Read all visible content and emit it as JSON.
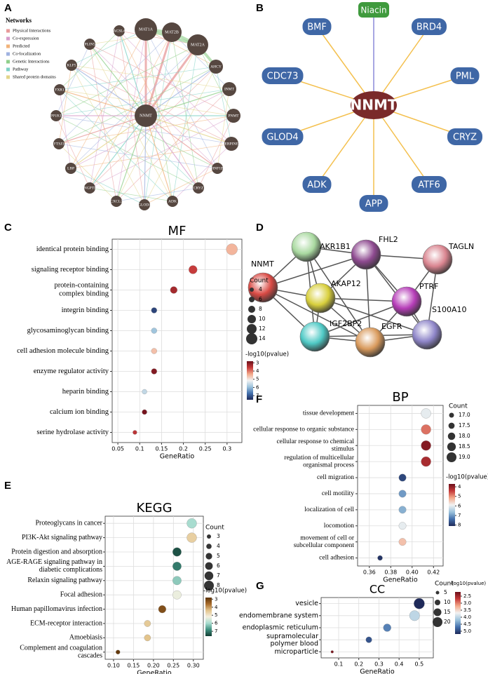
{
  "panel_labels": [
    "A",
    "B",
    "C",
    "D",
    "E",
    "F",
    "G"
  ],
  "network_a": {
    "legend_title": "Networks",
    "legend": [
      {
        "label": "Physical Interactions",
        "color": "#e89a9a"
      },
      {
        "label": "Co-expression",
        "color": "#d79ccb"
      },
      {
        "label": "Predicted",
        "color": "#f1b27a"
      },
      {
        "label": "Co-localization",
        "color": "#9fb2e0"
      },
      {
        "label": "Genetic Interactions",
        "color": "#8fcf8a"
      },
      {
        "label": "Pathway",
        "color": "#7fd2c6"
      },
      {
        "label": "Shared protein domains",
        "color": "#e3d58a"
      }
    ],
    "center": "NNMT",
    "nodes": [
      "MAT1A",
      "MAT2B",
      "MAT2A",
      "AHCY",
      "INMT",
      "PNMT",
      "SERPINE1",
      "HNF1B",
      "CRYZ",
      "ADK",
      "GLOD4",
      "CXCL2",
      "ANGPTL4",
      "LBP",
      "FTSJ3",
      "PPP1R3B",
      "FXR1",
      "KLF5",
      "PLIN5",
      "ACSL4"
    ],
    "node_color": "#564740"
  },
  "network_b": {
    "center": "NNMT",
    "center_color": "#7a2a2a",
    "drug": "Niacin",
    "drug_color": "#3f9a3d",
    "nodes": [
      "BMF",
      "BRD4",
      "CDC73",
      "PML",
      "GLOD4",
      "CRYZ",
      "ADK",
      "ATF6",
      "APP"
    ],
    "node_color": "#3f67a6",
    "edge_color": "#f4c04e",
    "drug_edge_color": "#8c8ad8"
  },
  "network_d": {
    "nodes": [
      {
        "label": "AKR1B1",
        "color": "#a9d9a0"
      },
      {
        "label": "FHL2",
        "color": "#8e4a90"
      },
      {
        "label": "TAGLN",
        "color": "#d9848f"
      },
      {
        "label": "NNMT",
        "color": "#d94a44"
      },
      {
        "label": "AKAP12",
        "color": "#d8cf3c"
      },
      {
        "label": "PTRF",
        "color": "#b63db8"
      },
      {
        "label": "S100A10",
        "color": "#8f86c9"
      },
      {
        "label": "IGF2BP2",
        "color": "#4ec9c5"
      },
      {
        "label": "EGFR",
        "color": "#d99a5c"
      }
    ],
    "edge_color": "#555555"
  },
  "chart_data": [
    {
      "type": "dotplot",
      "title": "MF",
      "xlabel": "GeneRatio",
      "categories": [
        "identical protein binding",
        "signaling receptor binding",
        "protein-containing\ncomplex binding",
        "integrin binding",
        "glycosaminoglycan binding",
        "cell adhesion molecule binding",
        "enzyme regulator activity",
        "heparin binding",
        "calcium ion binding",
        "serine hydrolase activity"
      ],
      "gene_ratio": [
        0.311,
        0.222,
        0.178,
        0.133,
        0.133,
        0.133,
        0.133,
        0.111,
        0.111,
        0.089
      ],
      "count": [
        14,
        10,
        8,
        6,
        6,
        6,
        6,
        5,
        5,
        4
      ],
      "neglog10p": [
        4.5,
        3.6,
        3.3,
        7.2,
        5.9,
        4.6,
        3.0,
        5.6,
        2.9,
        3.5
      ],
      "xlim": [
        0.037,
        0.334
      ],
      "xticks": [
        0.05,
        0.1,
        0.15,
        0.2,
        0.25,
        0.3
      ],
      "grid": true,
      "size_legend_title": "Count",
      "size_legend": [
        4,
        6,
        8,
        10,
        12,
        14
      ],
      "color_legend_title": "-log10(pvalue)",
      "clim": [
        2.8,
        7.5
      ],
      "cticks": [
        3,
        4,
        5,
        6,
        7
      ],
      "colormap": [
        "#6b0f1a",
        "#c53a3a",
        "#f3a98a",
        "#f2f2f2",
        "#9cc3dc",
        "#4470ad",
        "#1f2a5a"
      ]
    },
    {
      "type": "dotplot",
      "title": "KEGG",
      "xlabel": "GeneRatio",
      "categories": [
        "Proteoglycans in cancer",
        "PI3K-Akt signaling pathway",
        "Protein digestion and absorption",
        "AGE-RAGE signaling pathway in\ndiabetic complications",
        "Relaxin signaling pathway",
        "Focal adhesion",
        "Human papillomavirus infection",
        "ECM-receptor interaction",
        "Amoebiasis",
        "Complement and coagulation\ncascades"
      ],
      "gene_ratio": [
        0.296,
        0.296,
        0.259,
        0.259,
        0.259,
        0.259,
        0.222,
        0.185,
        0.185,
        0.111
      ],
      "count": [
        8,
        8,
        7,
        7,
        7,
        7,
        6,
        5,
        5,
        3
      ],
      "neglog10p": [
        6.0,
        4.6,
        7.4,
        7.0,
        6.2,
        5.3,
        3.2,
        4.5,
        4.4,
        2.9
      ],
      "xlim": [
        0.079,
        0.325
      ],
      "xticks": [
        {
          "value": 0.1,
          "label": "0.10"
        },
        0.15,
        {
          "value": 0.2,
          "label": "0.20"
        },
        0.25,
        {
          "value": 0.3,
          "label": "0.30"
        }
      ],
      "grid": true,
      "size_legend_title": "Count",
      "size_legend": [
        3,
        4,
        5,
        6,
        7,
        8
      ],
      "color_legend_title": "-log10(pvalue)",
      "clim": [
        2.8,
        7.6
      ],
      "cticks": [
        3,
        4,
        5,
        6,
        7
      ],
      "colormap": [
        "#5a3208",
        "#a86b2b",
        "#e3c48c",
        "#f5f0e0",
        "#a8dccf",
        "#3e8f7e",
        "#123d32"
      ]
    },
    {
      "type": "dotplot",
      "title": "BP",
      "xlabel": "GeneRatio",
      "categories": [
        "tissue development",
        "cellular response to organic substance",
        "cellular response to chemical\nstimulus",
        "regulation of multicellular\norganismal process",
        "cell migration",
        "cell motility",
        "localization of cell",
        "locomotion",
        "movement of cell or\nsubcellular component",
        "cell adhesion"
      ],
      "gene_ratio": [
        0.413,
        0.413,
        0.413,
        0.413,
        0.391,
        0.391,
        0.391,
        0.391,
        0.391,
        0.37
      ],
      "count": [
        19,
        19,
        19,
        19,
        18,
        18,
        18,
        18,
        18,
        17
      ],
      "neglog10p": [
        6.0,
        4.8,
        3.9,
        4.2,
        7.8,
        7.0,
        6.8,
        6.0,
        5.4,
        8.0
      ],
      "xlim": [
        0.349,
        0.429
      ],
      "xticks": [
        0.36,
        0.38,
        {
          "value": 0.4,
          "label": "0.40"
        },
        0.42
      ],
      "grid": true,
      "size_legend_title": "Count",
      "size_legend": [
        {
          "value": 17,
          "label": "17.0"
        },
        17.5,
        {
          "value": 18,
          "label": "18.0"
        },
        18.5,
        {
          "value": 19,
          "label": "19.0"
        }
      ],
      "color_legend_title": "-log10(pvalue)",
      "clim": [
        3.7,
        8.1
      ],
      "cticks": [
        4,
        5,
        6,
        7,
        8
      ],
      "colormap": [
        "#6b0f1a",
        "#c53a3a",
        "#f3a98a",
        "#f2f2f2",
        "#9cc3dc",
        "#4470ad",
        "#1f2a5a"
      ]
    },
    {
      "type": "dotplot",
      "title": "CC",
      "xlabel": "GeneRatio",
      "categories": [
        "vesicle",
        "endomembrane system",
        "endoplasmic reticulum",
        "supramolecular\npolymer blood",
        "microparticle"
      ],
      "gene_ratio": [
        0.5,
        0.477,
        0.341,
        0.25,
        0.068
      ],
      "count": [
        22,
        21,
        15,
        11,
        3
      ],
      "neglog10p": [
        5.2,
        4.0,
        4.6,
        4.9,
        2.3
      ],
      "xlim": [
        0.013,
        0.57
      ],
      "xticks": [
        0.1,
        0.2,
        0.3,
        0.4,
        0.5
      ],
      "grid": true,
      "size_legend_title": "Count",
      "size_legend": [
        5,
        10,
        15,
        20
      ],
      "color_legend_title": "-log10(pvalue)",
      "clim": [
        2.2,
        5.2
      ],
      "cticks": [
        2.5,
        {
          "value": 3,
          "label": "3.0"
        },
        3.5,
        {
          "value": 4,
          "label": "4.0"
        },
        4.5,
        {
          "value": 5,
          "label": "5.0"
        }
      ],
      "colormap": [
        "#6b0f1a",
        "#c53a3a",
        "#f3a98a",
        "#f2f2f2",
        "#9cc3dc",
        "#4470ad",
        "#1f2a5a"
      ]
    }
  ]
}
